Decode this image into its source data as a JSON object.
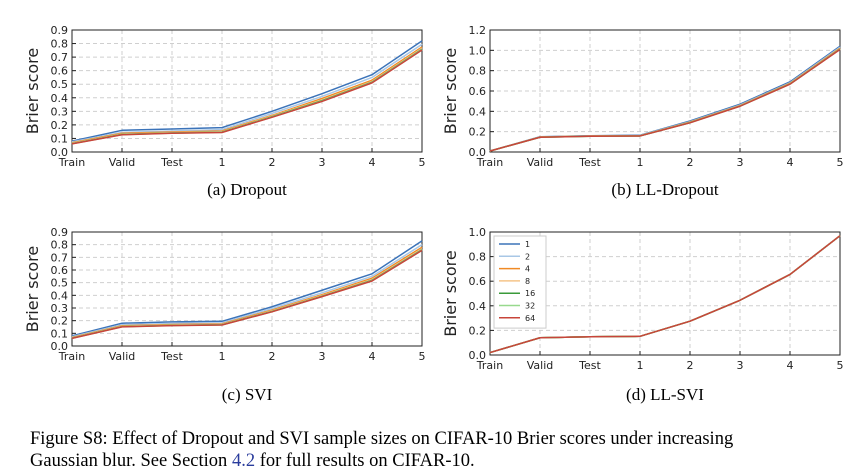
{
  "chart_data": [
    {
      "type": "line",
      "id": "a",
      "caption": "(a) Dropout",
      "ylabel": "Brier score",
      "categories": [
        "Train",
        "Valid",
        "Test",
        "1",
        "2",
        "3",
        "4",
        "5"
      ],
      "ylim": [
        0,
        0.9
      ],
      "yticks": [
        "0.0",
        "0.1",
        "0.2",
        "0.3",
        "0.4",
        "0.5",
        "0.6",
        "0.7",
        "0.8",
        "0.9"
      ],
      "grid": true,
      "series": [
        {
          "name": "1",
          "values": [
            0.08,
            0.16,
            0.17,
            0.18,
            0.3,
            0.43,
            0.57,
            0.82
          ]
        },
        {
          "name": "2",
          "values": [
            0.075,
            0.145,
            0.155,
            0.165,
            0.285,
            0.41,
            0.55,
            0.795
          ]
        },
        {
          "name": "4",
          "values": [
            0.068,
            0.138,
            0.148,
            0.155,
            0.27,
            0.395,
            0.53,
            0.775
          ]
        },
        {
          "name": "8",
          "values": [
            0.065,
            0.133,
            0.143,
            0.15,
            0.265,
            0.385,
            0.52,
            0.765
          ]
        },
        {
          "name": "16",
          "values": [
            0.062,
            0.13,
            0.14,
            0.147,
            0.26,
            0.378,
            0.515,
            0.758
          ]
        },
        {
          "name": "32",
          "values": [
            0.061,
            0.128,
            0.139,
            0.145,
            0.258,
            0.375,
            0.512,
            0.755
          ]
        },
        {
          "name": "64",
          "values": [
            0.06,
            0.127,
            0.138,
            0.144,
            0.256,
            0.373,
            0.51,
            0.752
          ]
        }
      ]
    },
    {
      "type": "line",
      "id": "b",
      "caption": "(b) LL-Dropout",
      "ylabel": "Brier score",
      "categories": [
        "Train",
        "Valid",
        "Test",
        "1",
        "2",
        "3",
        "4",
        "5"
      ],
      "ylim": [
        0,
        1.2
      ],
      "yticks": [
        "0.0",
        "0.2",
        "0.4",
        "0.6",
        "0.8",
        "1.0",
        "1.2"
      ],
      "grid": true,
      "series": [
        {
          "name": "1",
          "values": [
            0.01,
            0.15,
            0.16,
            0.165,
            0.305,
            0.47,
            0.69,
            1.04
          ]
        },
        {
          "name": "2",
          "values": [
            0.01,
            0.148,
            0.158,
            0.162,
            0.298,
            0.462,
            0.68,
            1.03
          ]
        },
        {
          "name": "4",
          "values": [
            0.01,
            0.147,
            0.157,
            0.16,
            0.294,
            0.457,
            0.675,
            1.02
          ]
        },
        {
          "name": "8",
          "values": [
            0.01,
            0.146,
            0.156,
            0.159,
            0.291,
            0.454,
            0.671,
            1.015
          ]
        },
        {
          "name": "16",
          "values": [
            0.01,
            0.145,
            0.155,
            0.158,
            0.289,
            0.452,
            0.669,
            1.012
          ]
        },
        {
          "name": "32",
          "values": [
            0.01,
            0.145,
            0.155,
            0.158,
            0.288,
            0.451,
            0.668,
            1.01
          ]
        },
        {
          "name": "64",
          "values": [
            0.01,
            0.145,
            0.155,
            0.158,
            0.287,
            0.45,
            0.667,
            1.008
          ]
        }
      ]
    },
    {
      "type": "line",
      "id": "c",
      "caption": "(c) SVI",
      "ylabel": "Brier score",
      "categories": [
        "Train",
        "Valid",
        "Test",
        "1",
        "2",
        "3",
        "4",
        "5"
      ],
      "ylim": [
        0,
        0.9
      ],
      "yticks": [
        "0.0",
        "0.1",
        "0.2",
        "0.3",
        "0.4",
        "0.5",
        "0.6",
        "0.7",
        "0.8",
        "0.9"
      ],
      "grid": true,
      "series": [
        {
          "name": "1",
          "values": [
            0.08,
            0.18,
            0.19,
            0.195,
            0.31,
            0.44,
            0.57,
            0.83
          ]
        },
        {
          "name": "2",
          "values": [
            0.073,
            0.168,
            0.178,
            0.183,
            0.295,
            0.42,
            0.55,
            0.8
          ]
        },
        {
          "name": "4",
          "values": [
            0.067,
            0.16,
            0.17,
            0.175,
            0.283,
            0.405,
            0.535,
            0.78
          ]
        },
        {
          "name": "8",
          "values": [
            0.064,
            0.156,
            0.166,
            0.171,
            0.277,
            0.398,
            0.525,
            0.768
          ]
        },
        {
          "name": "16",
          "values": [
            0.062,
            0.153,
            0.163,
            0.168,
            0.273,
            0.393,
            0.518,
            0.76
          ]
        },
        {
          "name": "32",
          "values": [
            0.061,
            0.152,
            0.162,
            0.167,
            0.271,
            0.391,
            0.515,
            0.757
          ]
        },
        {
          "name": "64",
          "values": [
            0.06,
            0.151,
            0.161,
            0.166,
            0.27,
            0.39,
            0.513,
            0.755
          ]
        }
      ]
    },
    {
      "type": "line",
      "id": "d",
      "caption": "(d) LL-SVI",
      "ylabel": "Brier score",
      "categories": [
        "Train",
        "Valid",
        "Test",
        "1",
        "2",
        "3",
        "4",
        "5"
      ],
      "ylim": [
        0,
        1.0
      ],
      "yticks": [
        "0.0",
        "0.2",
        "0.4",
        "0.6",
        "0.8",
        "1.0"
      ],
      "grid": true,
      "legend": "top-left",
      "series": [
        {
          "name": "1",
          "values": [
            0.02,
            0.14,
            0.148,
            0.152,
            0.275,
            0.445,
            0.655,
            0.97
          ]
        },
        {
          "name": "2",
          "values": [
            0.02,
            0.14,
            0.148,
            0.152,
            0.275,
            0.445,
            0.655,
            0.97
          ]
        },
        {
          "name": "4",
          "values": [
            0.02,
            0.14,
            0.148,
            0.152,
            0.275,
            0.445,
            0.655,
            0.97
          ]
        },
        {
          "name": "8",
          "values": [
            0.02,
            0.14,
            0.148,
            0.152,
            0.275,
            0.445,
            0.655,
            0.97
          ]
        },
        {
          "name": "16",
          "values": [
            0.02,
            0.14,
            0.148,
            0.152,
            0.275,
            0.445,
            0.655,
            0.97
          ]
        },
        {
          "name": "32",
          "values": [
            0.02,
            0.14,
            0.148,
            0.152,
            0.275,
            0.445,
            0.655,
            0.97
          ]
        },
        {
          "name": "64",
          "values": [
            0.02,
            0.14,
            0.148,
            0.152,
            0.275,
            0.445,
            0.655,
            0.97
          ]
        }
      ]
    }
  ],
  "series_colors": {
    "1": "#3b73b9",
    "2": "#a8c7e6",
    "4": "#f08a24",
    "8": "#f5c48a",
    "16": "#3a9a3a",
    "32": "#98d98e",
    "64": "#c8443a"
  },
  "figure_caption": {
    "line1": "Figure S8: Effect of Dropout and SVI sample sizes on CIFAR-10 Brier scores under increasing",
    "line2_before": "Gaussian blur. See Section ",
    "line2_ref": "4.2",
    "line2_after": " for full results on CIFAR-10."
  }
}
